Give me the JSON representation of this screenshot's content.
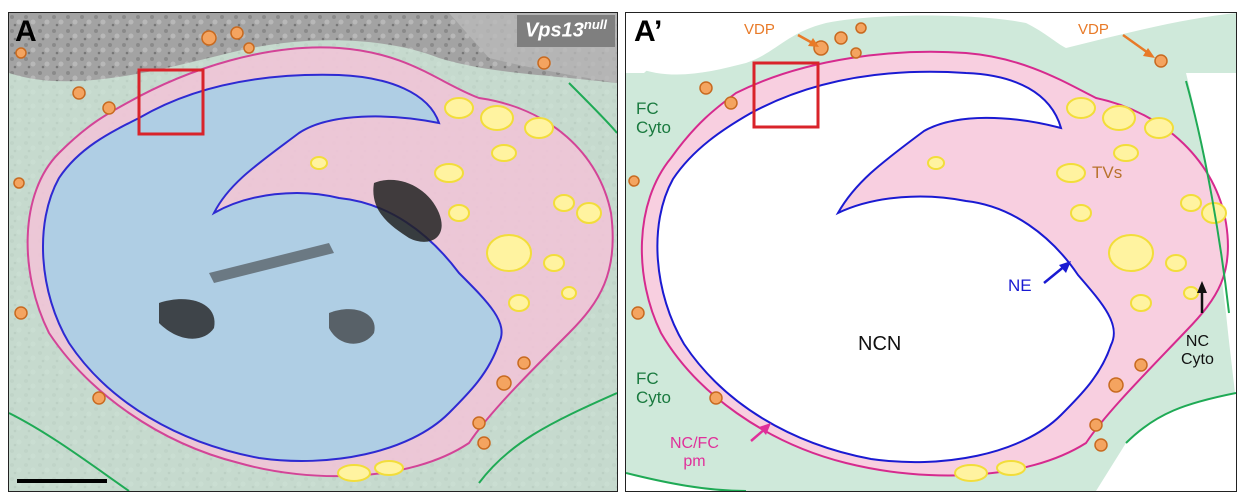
{
  "panelA": {
    "letter": "A",
    "genotype_base": "Vps13",
    "genotype_sup": "null"
  },
  "panelB": {
    "letter": "A’",
    "labels": {
      "vdp_1": "VDP",
      "vdp_2": "VDP",
      "fc_cyto_top": "FC\nCyto",
      "fc_cyto_bottom": "FC\nCyto",
      "tvs": "TVs",
      "ne": "NE",
      "ncn": "NCN",
      "nc_cyto": "NC\nCyto",
      "nc_fc_pm": "NC/FC\npm"
    }
  },
  "colors": {
    "fc_cytoplasm": "#cfe9da",
    "nc_cytoplasm": "#f8cfe0",
    "nucleus": "#a9cfe6",
    "membrane_pink": "#d62a8e",
    "nuclear_envelope": "#1a1ad2",
    "vesicle_yellow": "#fff3a0",
    "vesicle_outline": "#f2dd3a",
    "vdp_orange": "#f4a460",
    "highlight_box": "#d9232a"
  }
}
